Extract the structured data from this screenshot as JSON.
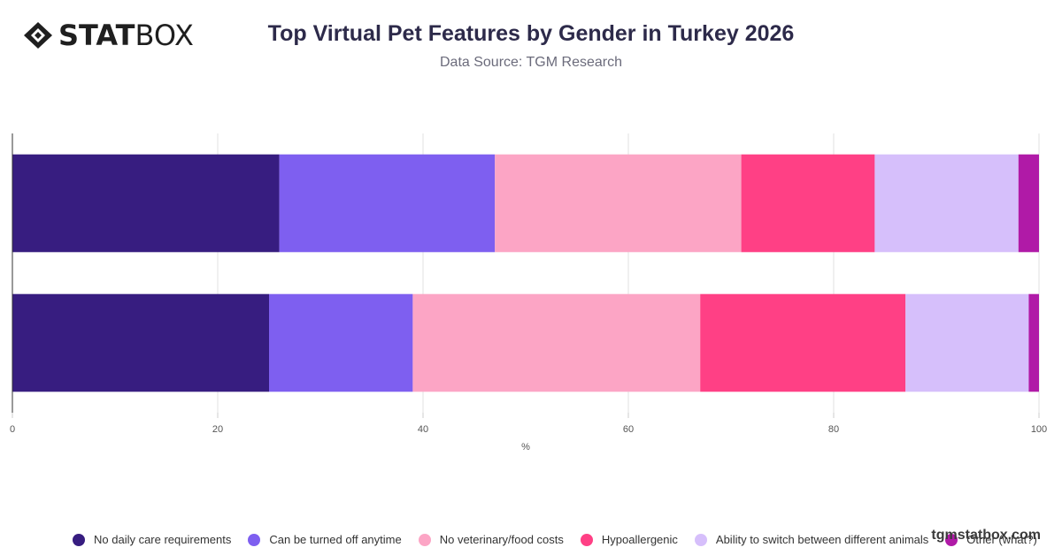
{
  "brand": {
    "logo_bold": "STAT",
    "logo_light": "BOX",
    "watermark": "tgmstatbox.com"
  },
  "title": "Top Virtual Pet Features by Gender in Turkey 2026",
  "subtitle": "Data Source: TGM Research",
  "chart_data": {
    "type": "bar",
    "orientation": "horizontal",
    "stacked": true,
    "categories": [
      "",
      ""
    ],
    "xlabel": "%",
    "xlim": [
      0,
      100
    ],
    "xticks": [
      0,
      20,
      40,
      60,
      80,
      100
    ],
    "grid": true,
    "legend_position": "bottom",
    "series": [
      {
        "name": "No daily care requirements",
        "color": "#371d80",
        "values": [
          26,
          25
        ]
      },
      {
        "name": "Can be turned off anytime",
        "color": "#7e5ff0",
        "values": [
          21,
          14
        ]
      },
      {
        "name": "No veterinary/food costs",
        "color": "#fca5c5",
        "values": [
          24,
          28
        ]
      },
      {
        "name": "Hypoallergenic",
        "color": "#ff4085",
        "values": [
          13,
          20
        ]
      },
      {
        "name": "Ability to switch between different animals",
        "color": "#d6bffb",
        "values": [
          14,
          12
        ]
      },
      {
        "name": "Other (what?)",
        "color": "#b01aa7",
        "values": [
          2,
          1
        ]
      }
    ]
  }
}
